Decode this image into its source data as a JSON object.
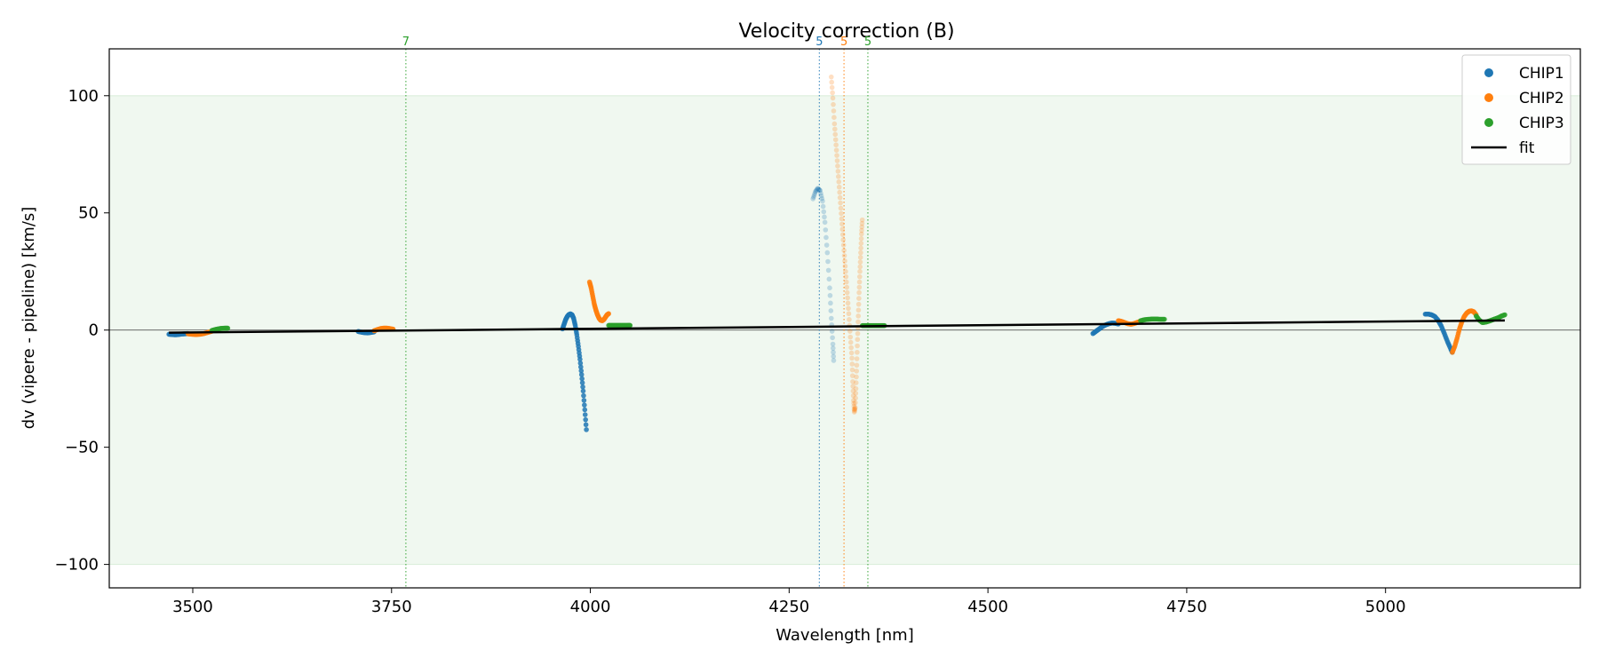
{
  "chart_data": {
    "type": "scatter",
    "title": "Velocity correction (B)",
    "xlabel": "Wavelength [nm]",
    "ylabel": "dv (vipere - pipeline) [km/s]",
    "xlim": [
      3395,
      5245
    ],
    "ylim": [
      -110,
      120
    ],
    "x_ticks": [
      3500,
      3750,
      4000,
      4250,
      4500,
      4750,
      5000
    ],
    "y_ticks": [
      -100,
      -50,
      0,
      50,
      100
    ],
    "y_tick_labels": [
      "−100",
      "−50",
      "0",
      "50",
      "100"
    ],
    "shaded_band": {
      "y0": -100,
      "y1": 100,
      "color": "#2ca02c"
    },
    "zero_line": 0,
    "legend_position": "top-right",
    "colors": {
      "CHIP1": "#1f77b4",
      "CHIP2": "#ff7f0e",
      "CHIP3": "#2ca02c",
      "fit": "#000000"
    },
    "vertical_lines": [
      {
        "x": 3768,
        "label": "7",
        "series": "CHIP3"
      },
      {
        "x": 4288,
        "label": "5",
        "series": "CHIP1"
      },
      {
        "x": 4319,
        "label": "5",
        "series": "CHIP2"
      },
      {
        "x": 4349,
        "label": "5",
        "series": "CHIP3"
      }
    ],
    "series": [
      {
        "name": "CHIP1",
        "segments": [
          {
            "alpha": 0.85,
            "points": [
              [
                3470,
                -1.8
              ],
              [
                3474,
                -1.9
              ],
              [
                3478,
                -2.0
              ],
              [
                3482,
                -1.9
              ],
              [
                3486,
                -1.7
              ],
              [
                3490,
                -1.6
              ],
              [
                3494,
                -1.5
              ]
            ]
          },
          {
            "alpha": 0.85,
            "points": [
              [
                3708,
                -0.6
              ],
              [
                3712,
                -0.9
              ],
              [
                3716,
                -1.1
              ],
              [
                3720,
                -1.2
              ],
              [
                3724,
                -1.0
              ],
              [
                3728,
                -0.8
              ]
            ]
          },
          {
            "alpha": 0.85,
            "points": [
              [
                3965,
                0.5
              ],
              [
                3967,
                2.5
              ],
              [
                3969,
                4.5
              ],
              [
                3971,
                5.8
              ],
              [
                3973,
                6.6
              ],
              [
                3975,
                6.9
              ],
              [
                3977,
                6.5
              ],
              [
                3979,
                5.0
              ],
              [
                3981,
                2.0
              ],
              [
                3983,
                -2.0
              ],
              [
                3985,
                -7.0
              ],
              [
                3987,
                -12.5
              ],
              [
                3989,
                -19.0
              ],
              [
                3991,
                -26.0
              ],
              [
                3993,
                -34.0
              ],
              [
                3995,
                -42.5
              ]
            ]
          },
          {
            "alpha": 0.25,
            "points": [
              [
                4280,
                56
              ],
              [
                4283,
                59
              ],
              [
                4286,
                60.5
              ],
              [
                4289,
                59.5
              ],
              [
                4292,
                55
              ],
              [
                4295,
                46
              ],
              [
                4298,
                33
              ],
              [
                4301,
                18
              ],
              [
                4303,
                5
              ],
              [
                4305,
                -6
              ],
              [
                4306,
                -13
              ]
            ]
          },
          {
            "alpha": 0.85,
            "points": [
              [
                4632,
                -1.5
              ],
              [
                4636,
                -0.5
              ],
              [
                4640,
                0.5
              ],
              [
                4644,
                1.5
              ],
              [
                4648,
                2.2
              ],
              [
                4652,
                2.7
              ],
              [
                4656,
                3.0
              ],
              [
                4660,
                2.9
              ],
              [
                4664,
                2.6
              ]
            ]
          },
          {
            "alpha": 0.85,
            "points": [
              [
                5050,
                6.8
              ],
              [
                5054,
                6.8
              ],
              [
                5058,
                6.5
              ],
              [
                5062,
                5.8
              ],
              [
                5066,
                4.2
              ],
              [
                5070,
                1.8
              ],
              [
                5074,
                -1.5
              ],
              [
                5078,
                -5.0
              ],
              [
                5082,
                -8.0
              ],
              [
                5084,
                -9.5
              ]
            ]
          }
        ]
      },
      {
        "name": "CHIP2",
        "segments": [
          {
            "alpha": 0.85,
            "points": [
              [
                3494,
                -1.6
              ],
              [
                3499,
                -1.8
              ],
              [
                3504,
                -1.9
              ],
              [
                3509,
                -1.8
              ],
              [
                3514,
                -1.5
              ],
              [
                3519,
                -1.0
              ],
              [
                3524,
                -0.5
              ]
            ]
          },
          {
            "alpha": 0.85,
            "points": [
              [
                3728,
                -0.3
              ],
              [
                3732,
                0.2
              ],
              [
                3736,
                0.6
              ],
              [
                3740,
                0.8
              ],
              [
                3744,
                0.8
              ],
              [
                3748,
                0.6
              ],
              [
                3752,
                0.4
              ]
            ]
          },
          {
            "alpha": 0.85,
            "points": [
              [
                3999,
                20.5
              ],
              [
                4001,
                18
              ],
              [
                4003,
                14.5
              ],
              [
                4005,
                11
              ],
              [
                4007,
                8.5
              ],
              [
                4009,
                6.5
              ],
              [
                4011,
                5.0
              ],
              [
                4013,
                4.2
              ],
              [
                4015,
                4.0
              ],
              [
                4017,
                4.5
              ],
              [
                4019,
                5.5
              ],
              [
                4021,
                6.5
              ],
              [
                4023,
                7.0
              ]
            ]
          },
          {
            "alpha": 0.25,
            "points": [
              [
                4303,
                108
              ],
              [
                4305,
                99
              ],
              [
                4307,
                88
              ],
              [
                4309,
                79
              ],
              [
                4311,
                70
              ],
              [
                4313,
                61
              ],
              [
                4315,
                52
              ],
              [
                4317,
                43
              ],
              [
                4319,
                34
              ],
              [
                4321,
                25
              ],
              [
                4323,
                16
              ],
              [
                4325,
                7
              ],
              [
                4327,
                -3
              ],
              [
                4329,
                -12
              ],
              [
                4330,
                -22
              ],
              [
                4331,
                -30
              ],
              [
                4332,
                -35
              ],
              [
                4333,
                -33
              ],
              [
                4334,
                -25
              ],
              [
                4335,
                -15
              ],
              [
                4336,
                -4
              ],
              [
                4337,
                6
              ],
              [
                4338,
                16
              ],
              [
                4339,
                25
              ],
              [
                4340,
                33
              ],
              [
                4341,
                41
              ],
              [
                4342,
                47
              ]
            ]
          },
          {
            "alpha": 0.85,
            "points": [
              [
                4664,
                4.0
              ],
              [
                4668,
                3.7
              ],
              [
                4672,
                3.2
              ],
              [
                4676,
                2.7
              ],
              [
                4680,
                2.5
              ],
              [
                4684,
                2.8
              ],
              [
                4688,
                3.3
              ],
              [
                4692,
                3.8
              ]
            ]
          },
          {
            "alpha": 0.85,
            "points": [
              [
                5084,
                -9.5
              ],
              [
                5087,
                -7.0
              ],
              [
                5090,
                -3.5
              ],
              [
                5093,
                0.5
              ],
              [
                5096,
                3.5
              ],
              [
                5099,
                5.8
              ],
              [
                5102,
                7.2
              ],
              [
                5105,
                8.0
              ],
              [
                5108,
                8.2
              ],
              [
                5111,
                7.8
              ],
              [
                5114,
                6.5
              ]
            ]
          }
        ]
      },
      {
        "name": "CHIP3",
        "segments": [
          {
            "alpha": 0.85,
            "points": [
              [
                3524,
                -0.2
              ],
              [
                3528,
                0.2
              ],
              [
                3532,
                0.5
              ],
              [
                3536,
                0.7
              ],
              [
                3540,
                0.8
              ],
              [
                3544,
                0.8
              ]
            ]
          },
          {
            "alpha": 0.85,
            "points": [
              [
                4023,
                2.0
              ],
              [
                4027,
                2.0
              ],
              [
                4031,
                2.0
              ],
              [
                4035,
                2.0
              ],
              [
                4039,
                2.0
              ],
              [
                4043,
                2.0
              ],
              [
                4047,
                2.0
              ],
              [
                4050,
                2.0
              ]
            ]
          },
          {
            "alpha": 0.85,
            "points": [
              [
                4342,
                1.9
              ],
              [
                4346,
                1.9
              ],
              [
                4350,
                1.9
              ],
              [
                4354,
                1.9
              ],
              [
                4358,
                1.9
              ],
              [
                4362,
                1.9
              ],
              [
                4366,
                1.9
              ],
              [
                4370,
                1.9
              ]
            ]
          },
          {
            "alpha": 0.85,
            "points": [
              [
                4692,
                4.0
              ],
              [
                4697,
                4.4
              ],
              [
                4702,
                4.6
              ],
              [
                4707,
                4.7
              ],
              [
                4712,
                4.7
              ],
              [
                4717,
                4.6
              ],
              [
                4722,
                4.6
              ]
            ]
          },
          {
            "alpha": 0.85,
            "points": [
              [
                5114,
                6.0
              ],
              [
                5118,
                4.2
              ],
              [
                5122,
                3.2
              ],
              [
                5126,
                3.4
              ],
              [
                5130,
                3.8
              ],
              [
                5134,
                4.3
              ],
              [
                5138,
                4.8
              ],
              [
                5142,
                5.3
              ],
              [
                5146,
                6.0
              ],
              [
                5150,
                6.5
              ]
            ]
          }
        ]
      },
      {
        "name": "fit",
        "line": [
          [
            3470,
            -1.1
          ],
          [
            5150,
            4.1
          ]
        ]
      }
    ]
  }
}
